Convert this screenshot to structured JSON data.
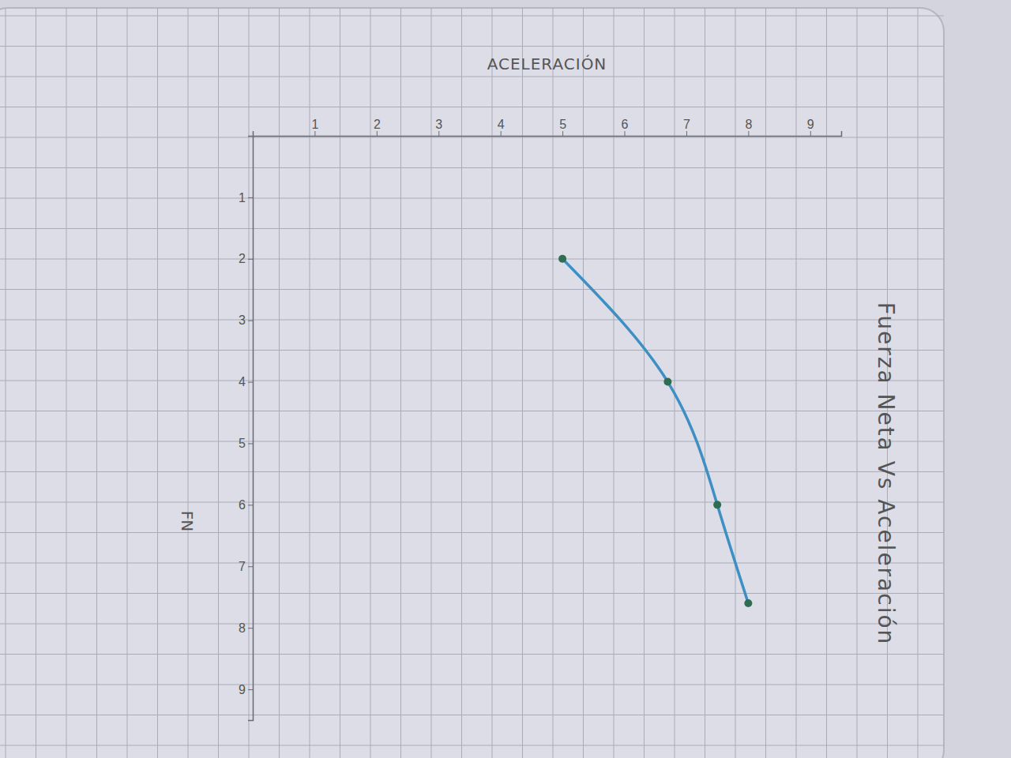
{
  "chart_data": {
    "type": "line",
    "title": "Fuerza Neta Vs Aceleración",
    "x_label": "ACELERACIÓN",
    "y_label": "FN",
    "x": [
      5,
      6.7,
      7.5,
      8
    ],
    "values": [
      2,
      4,
      6,
      7.6
    ],
    "color": "#3d8fc4",
    "marker": "circle",
    "xlim": [
      0,
      9.5
    ],
    "ylim": [
      0,
      9.5
    ],
    "xticks": [
      1,
      2,
      3,
      4,
      5,
      6,
      7,
      8,
      9
    ],
    "yticks": [
      1,
      2,
      3,
      4,
      5,
      6,
      7,
      8,
      9
    ],
    "grid": false
  }
}
